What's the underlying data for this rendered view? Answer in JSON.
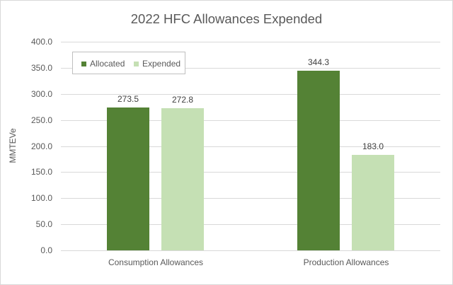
{
  "chart_data": {
    "type": "bar",
    "title": "2022 HFC Allowances Expended",
    "xlabel": "",
    "ylabel": "MMTEVe",
    "ylim": [
      0,
      400
    ],
    "yticks": [
      "0.0",
      "50.0",
      "100.0",
      "150.0",
      "200.0",
      "250.0",
      "300.0",
      "350.0",
      "400.0"
    ],
    "grid": true,
    "legend_position": "top-left (inside plot)",
    "categories": [
      "Consumption Allowances",
      "Production Allowances"
    ],
    "series": [
      {
        "name": "Allocated",
        "color": "#548235",
        "values": [
          273.5,
          344.3
        ],
        "labels": [
          "273.5",
          "344.3"
        ]
      },
      {
        "name": "Expended",
        "color": "#C5E0B4",
        "values": [
          272.8,
          183.0
        ],
        "labels": [
          "272.8",
          "183.0"
        ]
      }
    ]
  }
}
